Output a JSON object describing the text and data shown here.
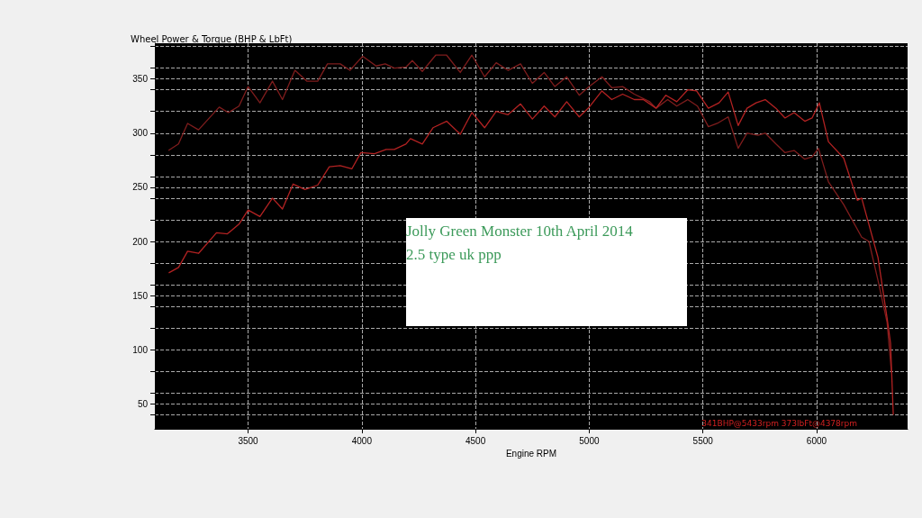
{
  "chart_data": {
    "type": "line",
    "title": "Wheel Power & Torque (BHP & LbFt)",
    "xlabel": "Engine RPM",
    "annotations": [
      "Jolly Green Monster 10th April 2014",
      "2.5 type uk ppp",
      "341BHP@5433rpm 373lbFt@4378rpm"
    ],
    "series": [
      {
        "color": "#7f1d1d",
        "x": [
          3150,
          3194,
          3234,
          3282,
          3373,
          3413,
          3460,
          3500,
          3552,
          3607,
          3651,
          3706,
          3758,
          3806,
          3849,
          3905,
          3948,
          4004,
          4063,
          4103,
          4143,
          4194,
          4222,
          4266,
          4325,
          4373,
          4433,
          4484,
          4540,
          4591,
          4643,
          4698,
          4750,
          4802,
          4849,
          4901,
          4956,
          5000,
          5056,
          5099,
          5147,
          5198,
          5266,
          5294,
          5345,
          5385,
          5433,
          5476,
          5524,
          5563,
          5611,
          5655,
          5694,
          5742,
          5774,
          5821,
          5861,
          5901,
          5948,
          5980,
          6008,
          6052,
          6119,
          6198,
          6230,
          6270,
          6310,
          6329
        ],
        "values": [
          284,
          290,
          309,
          303,
          324,
          319,
          325,
          343,
          328,
          348,
          331,
          358,
          348,
          348,
          364,
          364,
          358,
          371,
          362,
          364,
          360,
          361,
          367,
          357,
          372,
          372,
          356,
          372,
          352,
          365,
          358,
          364,
          346,
          356,
          343,
          352,
          335,
          343,
          352,
          342,
          343,
          336,
          329,
          323,
          331,
          325,
          331,
          325,
          306,
          309,
          315,
          286,
          300,
          298,
          300,
          290,
          282,
          284,
          276,
          278,
          286,
          255,
          234,
          204,
          200,
          164,
          125,
          79
        ]
      },
      {
        "color": "#b22222",
        "x": [
          3151,
          3194,
          3234,
          3282,
          3361,
          3409,
          3460,
          3500,
          3552,
          3607,
          3651,
          3698,
          3750,
          3806,
          3857,
          3905,
          3956,
          3996,
          4056,
          4107,
          4143,
          4194,
          4214,
          4266,
          4313,
          4373,
          4433,
          4484,
          4540,
          4591,
          4643,
          4698,
          4750,
          4802,
          4849,
          4901,
          4956,
          5000,
          5056,
          5099,
          5147,
          5198,
          5238,
          5294,
          5337,
          5385,
          5433,
          5472,
          5524,
          5571,
          5611,
          5655,
          5694,
          5734,
          5774,
          5821,
          5861,
          5901,
          5948,
          5980,
          6012,
          6052,
          6119,
          6179,
          6198,
          6270,
          6310,
          6325,
          6337
        ],
        "values": [
          171,
          176,
          191,
          189,
          208,
          207,
          216,
          229,
          223,
          240,
          230,
          253,
          248,
          252,
          269,
          270,
          267,
          282,
          281,
          285,
          285,
          290,
          295,
          290,
          305,
          311,
          299,
          319,
          305,
          320,
          317,
          327,
          313,
          325,
          315,
          329,
          315,
          324,
          339,
          331,
          336,
          331,
          331,
          323,
          335,
          329,
          340,
          339,
          323,
          328,
          338,
          307,
          323,
          328,
          331,
          323,
          314,
          319,
          311,
          314,
          328,
          292,
          277,
          238,
          240,
          185,
          129,
          106,
          40
        ]
      }
    ],
    "xlim": [
      3090,
      6400
    ],
    "xticks": [
      3500,
      4000,
      4500,
      5000,
      5500,
      6000
    ],
    "ylim": [
      27,
      383
    ],
    "yticks": [
      {
        "value": 40,
        "label": null
      },
      50,
      {
        "value": 60,
        "label": null
      },
      {
        "value": 80,
        "label": null
      },
      100,
      {
        "value": 120,
        "label": null
      },
      {
        "value": 140,
        "label": null
      },
      150,
      {
        "value": 160,
        "label": null
      },
      {
        "value": 180,
        "label": null
      },
      200,
      {
        "value": 220,
        "label": null
      },
      {
        "value": 240,
        "label": null
      },
      250,
      {
        "value": 260,
        "label": null
      },
      {
        "value": 280,
        "label": null
      },
      300,
      {
        "value": 320,
        "label": null
      },
      {
        "value": 340,
        "label": null
      },
      350,
      {
        "value": 360,
        "label": null
      },
      {
        "value": 380,
        "label": null
      }
    ],
    "grid": true,
    "marker": "none",
    "line_style": "solid"
  }
}
